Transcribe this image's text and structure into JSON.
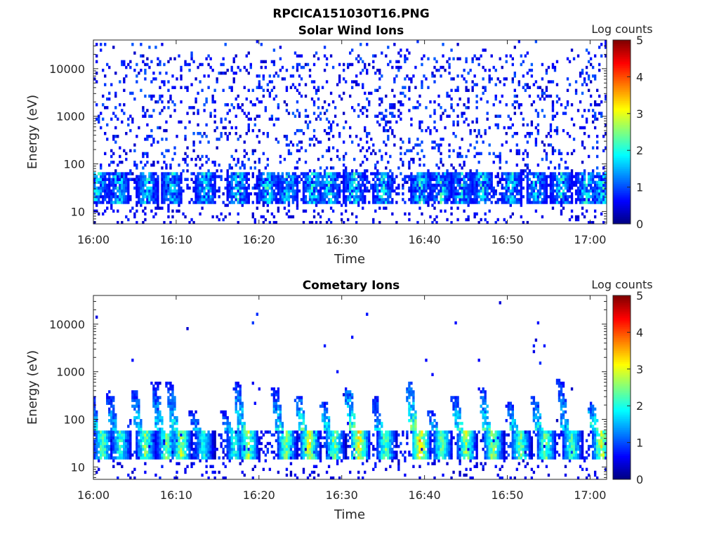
{
  "figure": {
    "title": "RPCICA151030T16.PNG"
  },
  "colorscale": {
    "name": "jet",
    "stops": [
      "#00007f",
      "#0000ff",
      "#007fff",
      "#00ffff",
      "#7fff7f",
      "#ffff00",
      "#ff7f00",
      "#ff0000",
      "#7f0000"
    ]
  },
  "chart_data": [
    {
      "type": "heatmap",
      "title": "Solar Wind Ions",
      "xlabel": "Time",
      "ylabel": "Energy (eV)",
      "x_ticks": [
        "16:00",
        "16:10",
        "16:20",
        "16:30",
        "16:40",
        "16:50",
        "17:00"
      ],
      "x_tick_minutes": [
        0,
        10,
        20,
        30,
        40,
        50,
        60
      ],
      "xlim_minutes": [
        0,
        62
      ],
      "y_scale": "log",
      "ylim": [
        5.5,
        40000
      ],
      "y_ticks": [
        "10",
        "100",
        "1000",
        "10000"
      ],
      "y_tick_values": [
        10,
        100,
        1000,
        10000
      ],
      "colorbar": {
        "label": "Log counts",
        "range": [
          0,
          5
        ],
        "ticks": [
          "0",
          "1",
          "2",
          "3",
          "4",
          "5"
        ]
      },
      "pattern": {
        "background_sparse_counts": "scattered 0–1 log counts across 30 eV to 25 keV",
        "low_energy_band_eV": [
          15,
          60
        ],
        "peak_log_counts": 2.5,
        "features_minutes": [
          0.5,
          3,
          6.5,
          9.5,
          13.5,
          17.5,
          21,
          23.5,
          26.5,
          28.5,
          31.5,
          35,
          39.5,
          42,
          44.5,
          47,
          50.5,
          53.5,
          56.5,
          59.5,
          61.5
        ]
      }
    },
    {
      "type": "heatmap",
      "title": "Cometary Ions",
      "xlabel": "Time",
      "ylabel": "Energy (eV)",
      "x_ticks": [
        "16:00",
        "16:10",
        "16:20",
        "16:30",
        "16:40",
        "16:50",
        "17:00"
      ],
      "x_tick_minutes": [
        0,
        10,
        20,
        30,
        40,
        50,
        60
      ],
      "xlim_minutes": [
        0,
        62
      ],
      "y_scale": "log",
      "ylim": [
        5.5,
        40000
      ],
      "y_ticks": [
        "10",
        "100",
        "1000",
        "10000"
      ],
      "y_tick_values": [
        10,
        100,
        1000,
        10000
      ],
      "colorbar": {
        "label": "Log counts",
        "range": [
          0,
          5
        ],
        "ticks": [
          "0",
          "1",
          "2",
          "3",
          "4",
          "5"
        ]
      },
      "pattern": {
        "band_eV": [
          15,
          60
        ],
        "peak_log_counts": 3.6,
        "dispersion_spikes": [
          {
            "t": 0.3,
            "top_eV": 300,
            "peak": 2.6
          },
          {
            "t": 2.5,
            "top_eV": 400,
            "peak": 2.4
          },
          {
            "t": 5.5,
            "top_eV": 400,
            "peak": 2.8
          },
          {
            "t": 8.0,
            "top_eV": 600,
            "peak": 2.6
          },
          {
            "t": 9.8,
            "top_eV": 600,
            "peak": 3.0
          },
          {
            "t": 12.5,
            "top_eV": 150,
            "peak": 2.2
          },
          {
            "t": 16.3,
            "top_eV": 150,
            "peak": 2.2
          },
          {
            "t": 17.9,
            "top_eV": 600,
            "peak": 3.0
          },
          {
            "t": 22.5,
            "top_eV": 450,
            "peak": 2.8
          },
          {
            "t": 25.3,
            "top_eV": 300,
            "peak": 3.4
          },
          {
            "t": 28.3,
            "top_eV": 250,
            "peak": 2.8
          },
          {
            "t": 31.3,
            "top_eV": 500,
            "peak": 3.5
          },
          {
            "t": 34.5,
            "top_eV": 300,
            "peak": 2.6
          },
          {
            "t": 38.7,
            "top_eV": 600,
            "peak": 3.6
          },
          {
            "t": 41.3,
            "top_eV": 150,
            "peak": 2.6
          },
          {
            "t": 44.2,
            "top_eV": 300,
            "peak": 3.0
          },
          {
            "t": 47.5,
            "top_eV": 450,
            "peak": 3.0
          },
          {
            "t": 50.8,
            "top_eV": 250,
            "peak": 2.8
          },
          {
            "t": 53.8,
            "top_eV": 300,
            "peak": 2.8
          },
          {
            "t": 57.0,
            "top_eV": 700,
            "peak": 2.6
          },
          {
            "t": 60.6,
            "top_eV": 250,
            "peak": 3.2
          }
        ]
      }
    }
  ]
}
